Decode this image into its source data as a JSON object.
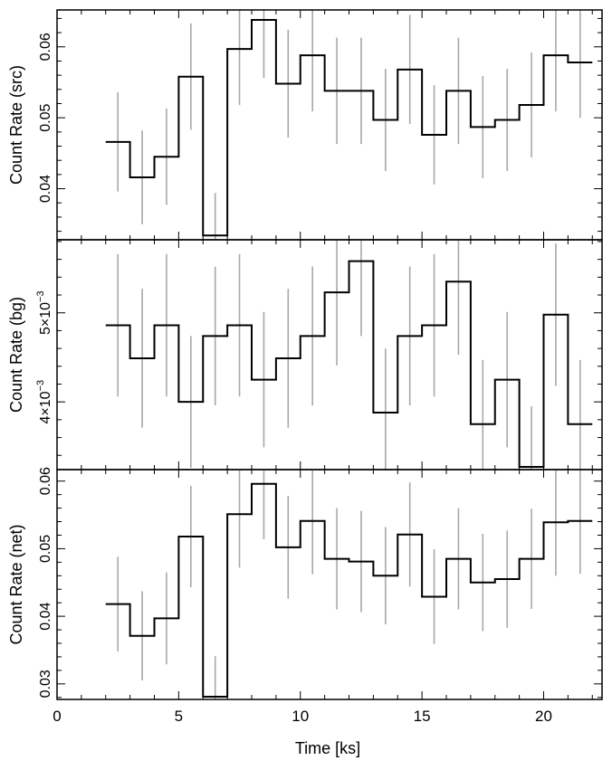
{
  "colors": {
    "step": "#000000",
    "errorbar": "#a8a8a8",
    "axis": "#000000"
  },
  "xlabel": "Time [ks]",
  "chart_data": [
    {
      "type": "line",
      "id": "src",
      "ylabel": "Count Rate (src)",
      "xlim": [
        0,
        22.4
      ],
      "ylim": [
        0.0328,
        0.0652
      ],
      "yticks": [
        {
          "value": 0.04,
          "label": "0.04"
        },
        {
          "value": 0.05,
          "label": "0.05"
        },
        {
          "value": 0.06,
          "label": "0.06"
        }
      ],
      "bin_edges": [
        2,
        3,
        4,
        5,
        6,
        7,
        8,
        9,
        10,
        11,
        12,
        13,
        14,
        15,
        16,
        17,
        18,
        19,
        20,
        21,
        22
      ],
      "values": [
        0.0466,
        0.0416,
        0.0445,
        0.0558,
        0.0334,
        0.0597,
        0.0638,
        0.0548,
        0.0588,
        0.0538,
        0.0538,
        0.0497,
        0.0568,
        0.0476,
        0.0538,
        0.0487,
        0.0497,
        0.0518,
        0.0588,
        0.0578
      ],
      "errors": [
        0.007,
        0.0066,
        0.0068,
        0.0075,
        0.006,
        0.0079,
        0.0082,
        0.0076,
        0.0079,
        0.0075,
        0.0075,
        0.0072,
        0.0077,
        0.007,
        0.0075,
        0.0072,
        0.0072,
        0.0074,
        0.0079,
        0.0078
      ]
    },
    {
      "type": "line",
      "id": "bg",
      "ylabel": "Count Rate (bg)",
      "xlim": [
        0,
        22.4
      ],
      "ylim": [
        0.00324,
        0.00582
      ],
      "yticks": [
        {
          "value": 0.004,
          "label": "4×10",
          "exp": "−3"
        },
        {
          "value": 0.005,
          "label": "5×10",
          "exp": "−3"
        }
      ],
      "bin_edges": [
        2,
        3,
        4,
        5,
        6,
        7,
        8,
        9,
        10,
        11,
        12,
        13,
        14,
        15,
        16,
        17,
        18,
        19,
        20,
        21,
        22
      ],
      "values": [
        0.00486,
        0.00449,
        0.00486,
        0.004,
        0.00474,
        0.00486,
        0.00425,
        0.00449,
        0.00474,
        0.00523,
        0.00558,
        0.00388,
        0.00474,
        0.00486,
        0.00535,
        0.00375,
        0.00425,
        0.00327,
        0.00498,
        0.00375
      ],
      "errors": [
        0.0008,
        0.00078,
        0.0008,
        0.00074,
        0.00078,
        0.0008,
        0.00076,
        0.00078,
        0.00078,
        0.00082,
        0.00084,
        0.00072,
        0.00078,
        0.0008,
        0.00082,
        0.00072,
        0.00076,
        0.00068,
        0.0008,
        0.00072
      ]
    },
    {
      "type": "line",
      "id": "net",
      "ylabel": "Count Rate (net)",
      "xlim": [
        0,
        22.4
      ],
      "ylim": [
        0.0277,
        0.0617
      ],
      "yticks": [
        {
          "value": 0.03,
          "label": "0.03"
        },
        {
          "value": 0.04,
          "label": "0.04"
        },
        {
          "value": 0.05,
          "label": "0.05"
        },
        {
          "value": 0.06,
          "label": "0.06"
        }
      ],
      "bin_edges": [
        2,
        3,
        4,
        5,
        6,
        7,
        8,
        9,
        10,
        11,
        12,
        13,
        14,
        15,
        16,
        17,
        18,
        19,
        20,
        21,
        22
      ],
      "values": [
        0.0418,
        0.0371,
        0.0397,
        0.0518,
        0.0281,
        0.0551,
        0.0596,
        0.0502,
        0.0541,
        0.0485,
        0.0481,
        0.046,
        0.0521,
        0.0429,
        0.0485,
        0.045,
        0.0455,
        0.0485,
        0.0539,
        0.0541
      ],
      "errors": [
        0.007,
        0.0066,
        0.0068,
        0.0075,
        0.006,
        0.0079,
        0.0082,
        0.0076,
        0.0079,
        0.0075,
        0.0075,
        0.0072,
        0.0077,
        0.007,
        0.0075,
        0.0072,
        0.0072,
        0.0074,
        0.0079,
        0.0078
      ]
    }
  ],
  "xticks": [
    {
      "value": 0,
      "label": "0"
    },
    {
      "value": 5,
      "label": "5"
    },
    {
      "value": 10,
      "label": "10"
    },
    {
      "value": 15,
      "label": "15"
    },
    {
      "value": 20,
      "label": "20"
    }
  ]
}
